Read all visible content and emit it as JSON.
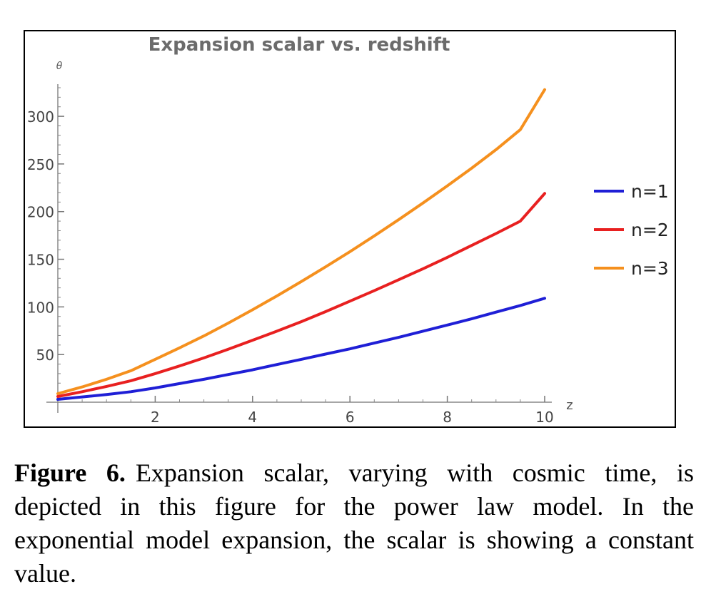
{
  "chart_data": {
    "type": "line",
    "title": "Expansion scalar vs. redshift",
    "xlabel": "z",
    "ylabel": "θ",
    "xlim": [
      0,
      10
    ],
    "ylim": [
      0,
      330
    ],
    "xticks": [
      2,
      4,
      6,
      8,
      10
    ],
    "yticks": [
      50,
      100,
      150,
      200,
      250,
      300
    ],
    "grid": false,
    "legend_position": "right",
    "x": [
      0,
      0.5,
      1,
      1.5,
      2,
      2.5,
      3,
      3.5,
      4,
      4.5,
      5,
      5.5,
      6,
      6.5,
      7,
      7.5,
      8,
      8.5,
      9,
      9.5,
      10
    ],
    "series": [
      {
        "name": "n=1",
        "color": "#1f1fd6",
        "values": [
          3,
          5.5,
          8,
          11,
          15,
          19.5,
          24,
          29,
          34,
          39.5,
          45,
          50.5,
          56,
          62,
          68,
          74.5,
          81,
          87.5,
          94.5,
          101.5,
          109
        ]
      },
      {
        "name": "n=2",
        "color": "#e82020",
        "values": [
          6,
          11,
          16.5,
          22.5,
          30,
          38,
          46.5,
          55.5,
          65,
          74.5,
          84.5,
          95,
          106,
          117,
          128.5,
          140,
          152,
          164.5,
          177,
          190,
          219
        ]
      },
      {
        "name": "n=3",
        "color": "#f5901e",
        "values": [
          9,
          16,
          24,
          33,
          45,
          57,
          69.5,
          83,
          97,
          111.5,
          126.5,
          142,
          158,
          174.5,
          191.5,
          209,
          227,
          245.5,
          265,
          286,
          328
        ]
      }
    ]
  },
  "caption": {
    "label": "Figure 6.",
    "text": "Expansion scalar, varying with cosmic time, is depicted in this figure for the power law model. In the exponential model expansion, the scalar is showing a constant value."
  }
}
